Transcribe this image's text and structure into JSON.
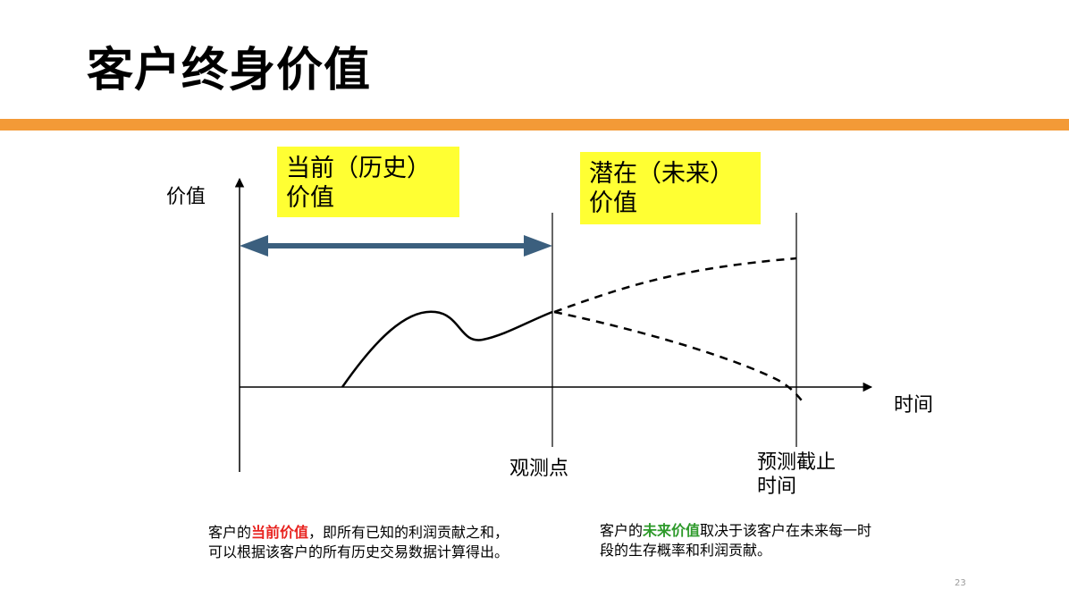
{
  "slide": {
    "title": "客户终身价值",
    "page_number": "23",
    "accent_color": "#f39a37"
  },
  "labels": {
    "history_box": [
      "当前（历史）",
      "价值"
    ],
    "future_box": [
      "潜在（未来）",
      "价值"
    ],
    "highlight_color": "#ffff33"
  },
  "axes": {
    "y_label": "价值",
    "x_label": "时间"
  },
  "markers": {
    "observation_point": "观测点",
    "forecast_cutoff": [
      "预测截止",
      "时间"
    ]
  },
  "notes": {
    "left": {
      "before": "客户的",
      "highlight": "当前价值",
      "after": "，即所有已知的利润贡献之和，可以根据该客户的所有历史交易数据计算得出。",
      "highlight_color": "#e8231f"
    },
    "right": {
      "before": "客户的",
      "highlight": "未来价值",
      "after": "取决于该客户在未来每一时段的生存概率和利润贡献。",
      "highlight_color": "#2e9a2b"
    }
  }
}
